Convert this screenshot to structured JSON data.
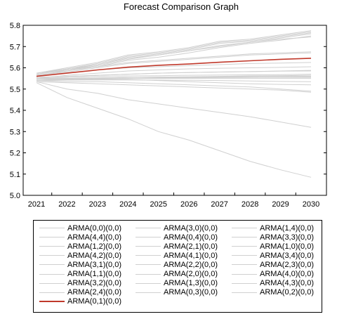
{
  "chart_data": {
    "type": "line",
    "title": "Forecast Comparison Graph",
    "xlabel": "",
    "ylabel": "",
    "x": [
      "2021",
      "2022",
      "2023",
      "2024",
      "2025",
      "2026",
      "2027",
      "2028",
      "2029",
      "2030"
    ],
    "ylim": [
      5.0,
      5.8
    ],
    "yticks": [
      "5.0",
      "5.1",
      "5.2",
      "5.3",
      "5.4",
      "5.5",
      "5.6",
      "5.7",
      "5.8"
    ],
    "grid": false,
    "legend_position": "bottom",
    "colors": {
      "highlight": "#c0392b",
      "other": "#d0d0d0"
    },
    "series": [
      {
        "name": "ARMA(0,0)(0,0)",
        "values": [
          5.56,
          5.575,
          5.59,
          5.6,
          5.605,
          5.61,
          5.615,
          5.62,
          5.622,
          5.625
        ]
      },
      {
        "name": "ARMA(3,0)(0,0)",
        "values": [
          5.565,
          5.58,
          5.6,
          5.62,
          5.63,
          5.64,
          5.65,
          5.66,
          5.665,
          5.67
        ]
      },
      {
        "name": "ARMA(1,4)(0,0)",
        "values": [
          5.57,
          5.59,
          5.61,
          5.64,
          5.66,
          5.68,
          5.7,
          5.72,
          5.735,
          5.745
        ]
      },
      {
        "name": "ARMA(4,4)(0,0)",
        "values": [
          5.575,
          5.595,
          5.62,
          5.655,
          5.67,
          5.69,
          5.72,
          5.73,
          5.75,
          5.77
        ]
      },
      {
        "name": "ARMA(0,4)(0,0)",
        "values": [
          5.57,
          5.595,
          5.615,
          5.65,
          5.665,
          5.685,
          5.715,
          5.725,
          5.745,
          5.765
        ]
      },
      {
        "name": "ARMA(3,3)(0,0)",
        "values": [
          5.56,
          5.59,
          5.605,
          5.635,
          5.65,
          5.67,
          5.695,
          5.715,
          5.73,
          5.75
        ]
      },
      {
        "name": "ARMA(1,2)(0,0)",
        "values": [
          5.55,
          5.565,
          5.575,
          5.585,
          5.59,
          5.595,
          5.598,
          5.6,
          5.602,
          5.605
        ]
      },
      {
        "name": "ARMA(2,1)(0,0)",
        "values": [
          5.555,
          5.56,
          5.565,
          5.57,
          5.575,
          5.578,
          5.58,
          5.582,
          5.585,
          5.588
        ]
      },
      {
        "name": "ARMA(1,0)(0,0)",
        "values": [
          5.55,
          5.555,
          5.56,
          5.562,
          5.563,
          5.565,
          5.566,
          5.567,
          5.568,
          5.57
        ]
      },
      {
        "name": "ARMA(4,2)(0,0)",
        "values": [
          5.57,
          5.59,
          5.615,
          5.645,
          5.66,
          5.68,
          5.705,
          5.72,
          5.74,
          5.76
        ]
      },
      {
        "name": "ARMA(4,1)(0,0)",
        "values": [
          5.565,
          5.585,
          5.605,
          5.625,
          5.635,
          5.645,
          5.655,
          5.665,
          5.67,
          5.675
        ]
      },
      {
        "name": "ARMA(3,4)(0,0)",
        "values": [
          5.575,
          5.6,
          5.625,
          5.66,
          5.675,
          5.695,
          5.725,
          5.735,
          5.755,
          5.775
        ]
      },
      {
        "name": "ARMA(3,1)(0,0)",
        "values": [
          5.545,
          5.55,
          5.553,
          5.555,
          5.556,
          5.557,
          5.558,
          5.559,
          5.56,
          5.56
        ]
      },
      {
        "name": "ARMA(2,2)(0,0)",
        "values": [
          5.54,
          5.545,
          5.548,
          5.55,
          5.552,
          5.553,
          5.554,
          5.555,
          5.556,
          5.557
        ]
      },
      {
        "name": "ARMA(2,3)(0,0)",
        "values": [
          5.545,
          5.548,
          5.552,
          5.555,
          5.556,
          5.558,
          5.56,
          5.562,
          5.563,
          5.565
        ]
      },
      {
        "name": "ARMA(1,1)(0,0)",
        "values": [
          5.54,
          5.542,
          5.543,
          5.543,
          5.542,
          5.541,
          5.54,
          5.538,
          5.536,
          5.535
        ]
      },
      {
        "name": "ARMA(2,0)(0,0)",
        "values": [
          5.53,
          5.46,
          5.41,
          5.36,
          5.3,
          5.26,
          5.21,
          5.16,
          5.12,
          5.085
        ]
      },
      {
        "name": "ARMA(4,0)(0,0)",
        "values": [
          5.535,
          5.5,
          5.48,
          5.45,
          5.43,
          5.41,
          5.39,
          5.37,
          5.345,
          5.32
        ]
      },
      {
        "name": "ARMA(3,2)(0,0)",
        "values": [
          5.54,
          5.535,
          5.535,
          5.53,
          5.525,
          5.52,
          5.515,
          5.51,
          5.5,
          5.49
        ]
      },
      {
        "name": "ARMA(1,3)(0,0)",
        "values": [
          5.545,
          5.545,
          5.545,
          5.545,
          5.54,
          5.535,
          5.53,
          5.525,
          5.522,
          5.52
        ]
      },
      {
        "name": "ARMA(4,3)(0,0)",
        "values": [
          5.535,
          5.53,
          5.525,
          5.52,
          5.515,
          5.51,
          5.505,
          5.5,
          5.495,
          5.485
        ]
      },
      {
        "name": "ARMA(2,4)(0,0)",
        "values": [
          5.545,
          5.545,
          5.55,
          5.55,
          5.55,
          5.55,
          5.55,
          5.55,
          5.55,
          5.55
        ]
      },
      {
        "name": "ARMA(0,3)(0,0)",
        "values": [
          5.55,
          5.55,
          5.552,
          5.555,
          5.555,
          5.555,
          5.555,
          5.555,
          5.555,
          5.555
        ]
      },
      {
        "name": "ARMA(0,2)(0,0)",
        "values": [
          5.555,
          5.56,
          5.565,
          5.57,
          5.575,
          5.578,
          5.58,
          5.582,
          5.584,
          5.585
        ]
      },
      {
        "name": "ARMA(0,1)(0,0)",
        "highlight": true,
        "values": [
          5.56,
          5.575,
          5.59,
          5.603,
          5.612,
          5.618,
          5.626,
          5.633,
          5.64,
          5.645
        ]
      }
    ]
  }
}
